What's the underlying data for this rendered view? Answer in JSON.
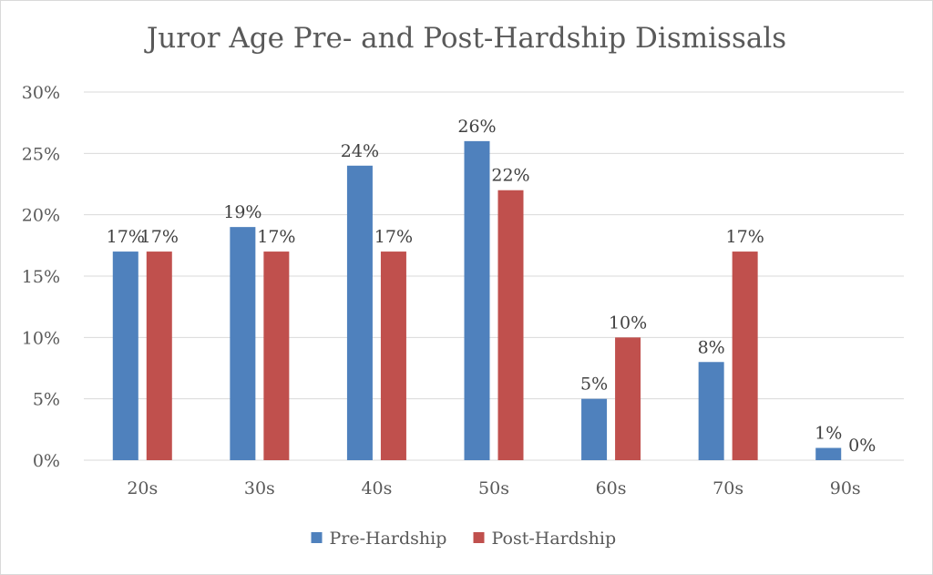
{
  "chart_data": {
    "type": "bar",
    "title": "Juror Age Pre- and Post-Hardship Dismissals",
    "categories": [
      "20s",
      "30s",
      "40s",
      "50s",
      "60s",
      "70s",
      "90s"
    ],
    "series": [
      {
        "name": "Pre-Hardship",
        "color": "#4f81bd",
        "values": [
          17,
          19,
          24,
          26,
          5,
          8,
          1
        ],
        "labels": [
          "17%",
          "19%",
          "24%",
          "26%",
          "5%",
          "8%",
          "1%"
        ]
      },
      {
        "name": "Post-Hardship",
        "color": "#c0504d",
        "values": [
          17,
          17,
          17,
          22,
          10,
          17,
          0
        ],
        "labels": [
          "17%",
          "17%",
          "17%",
          "22%",
          "10%",
          "17%",
          "0%"
        ]
      }
    ],
    "yticks": [
      "0%",
      "5%",
      "10%",
      "15%",
      "20%",
      "25%",
      "30%"
    ],
    "ylim": [
      0,
      30
    ],
    "grid": true,
    "legend": "bottom"
  }
}
